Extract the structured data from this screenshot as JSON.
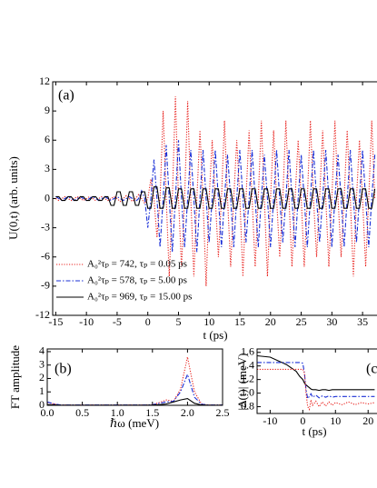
{
  "chart_data": [
    {
      "type": "line",
      "panel_label": "(a)",
      "xlabel": "t (ps)",
      "ylabel": "U(0,t) (arb. units)",
      "xlim": [
        -15.5,
        37.5
      ],
      "ylim": [
        -12,
        12
      ],
      "xticks": [
        -15,
        -10,
        -5,
        0,
        5,
        10,
        15,
        20,
        25,
        30,
        35
      ],
      "yticks": [
        -12,
        -9,
        -6,
        -3,
        0,
        3,
        6,
        9,
        12
      ],
      "legend": "lower left",
      "x": [
        -15,
        -14.5,
        -14,
        -13.5,
        -13,
        -12.5,
        -12,
        -11.5,
        -11,
        -10.5,
        -10,
        -9.5,
        -9,
        -8.5,
        -8,
        -7.5,
        -7,
        -6.5,
        -6,
        -5.5,
        -5,
        -4.5,
        -4,
        -3.5,
        -3,
        -2.5,
        -2,
        -1.5,
        -1,
        -0.5,
        0,
        0.5,
        1,
        1.5,
        2,
        2.5,
        3,
        3.5,
        4,
        4.5,
        5,
        5.5,
        6,
        6.5,
        7,
        7.5,
        8,
        8.5,
        9,
        9.5,
        10,
        10.5,
        11,
        11.5,
        12,
        12.5,
        13,
        13.5,
        14,
        14.5,
        15,
        15.5,
        16,
        16.5,
        17,
        17.5,
        18,
        18.5,
        19,
        19.5,
        20,
        20.5,
        21,
        21.5,
        22,
        22.5,
        23,
        23.5,
        24,
        24.5,
        25,
        25.5,
        26,
        26.5,
        27,
        27.5,
        28,
        28.5,
        29,
        29.5,
        30,
        30.5,
        31,
        31.5,
        32,
        32.5,
        33,
        33.5,
        34,
        34.5,
        35,
        35.5,
        36,
        36.5,
        37
      ],
      "series": [
        {
          "name": "A₀²τₚ = 742, τₚ =  0.05 ps",
          "color": "#e8201c",
          "linestyle": "dotted",
          "values": [
            0,
            -0.2,
            0,
            0.2,
            0,
            -0.2,
            0,
            0.2,
            0,
            -0.2,
            0,
            0.2,
            0,
            -0.2,
            0,
            0.2,
            0,
            -0.2,
            0,
            0.2,
            0,
            -0.3,
            0,
            0.3,
            0,
            -0.3,
            0,
            0.4,
            0,
            -0.5,
            0,
            2,
            0,
            -4,
            0,
            9,
            0,
            -8,
            0,
            10.5,
            0,
            -7,
            0,
            10,
            0,
            -8,
            0,
            7,
            0,
            -9,
            0,
            6,
            0,
            -6,
            0,
            8,
            0,
            -7,
            0,
            6,
            0,
            -8,
            0,
            7,
            0,
            -7,
            0,
            8,
            0,
            -8,
            0,
            7,
            0,
            -6,
            0,
            8,
            0,
            -7,
            0,
            6,
            0,
            -7,
            0,
            8,
            0,
            -6,
            0,
            7,
            0,
            -7,
            0,
            8,
            0,
            -6,
            0,
            7,
            0,
            -8,
            0,
            6,
            0,
            -7,
            0,
            8,
            0
          ]
        },
        {
          "name": "A₀²τₚ = 578, τₚ =  5.00 ps",
          "color": "#1a2fd6",
          "linestyle": "dashdot",
          "values": [
            0.2,
            0,
            -0.2,
            0,
            0.2,
            0,
            -0.2,
            0,
            0.2,
            0,
            -0.2,
            0,
            0.2,
            0,
            -0.2,
            0,
            0.2,
            0,
            -0.2,
            0,
            0.2,
            0,
            -0.2,
            0,
            0.2,
            0,
            -0.3,
            0,
            0.8,
            0,
            -3,
            0,
            4,
            0,
            -5,
            0,
            5.5,
            0,
            -5.5,
            0,
            6,
            0,
            -5,
            0,
            5,
            0,
            -5.5,
            0,
            5,
            0,
            -4.5,
            0,
            5,
            0,
            -5,
            0,
            4.5,
            0,
            -5,
            0,
            5,
            0,
            -4.5,
            0,
            5,
            0,
            -5,
            0,
            4.5,
            0,
            -5,
            0,
            5,
            0,
            -4.5,
            0,
            5,
            0,
            -5,
            0,
            4.5,
            0,
            -5,
            0,
            5,
            0,
            -4.5,
            0,
            5,
            0,
            -5,
            0,
            4.5,
            0,
            -5,
            0,
            5,
            0,
            -4.5,
            0,
            5,
            0,
            -5,
            0,
            4.5
          ]
        },
        {
          "name": "A₀²τₚ = 969, τₚ = 15.00 ps",
          "color": "#000000",
          "linestyle": "solid",
          "values": [
            0.2,
            0.2,
            -0.2,
            -0.2,
            0.2,
            0.2,
            -0.2,
            -0.2,
            0.2,
            0.2,
            -0.2,
            -0.2,
            0.2,
            0.2,
            -0.2,
            -0.2,
            0.2,
            0.2,
            -0.7,
            -0.7,
            0.7,
            0.7,
            -0.7,
            -0.7,
            0.7,
            0.7,
            -0.7,
            -0.7,
            0.7,
            0.7,
            -1,
            -1,
            1.2,
            1.2,
            -1,
            -1,
            1.1,
            1.1,
            -1,
            -1,
            1,
            1,
            -1,
            -1,
            1,
            1,
            -1,
            -1,
            1,
            1,
            -1,
            -1,
            1,
            1,
            -1,
            -1,
            1,
            1,
            -1,
            -1,
            1,
            1,
            -1,
            -1,
            1,
            1,
            -1,
            -1,
            1,
            1,
            -1,
            -1,
            1,
            1,
            -1,
            -1,
            1,
            1,
            -1,
            -1,
            1,
            1,
            -1,
            -1,
            1,
            1,
            -1,
            -1,
            1,
            1,
            -1,
            -1,
            1,
            1,
            -1,
            -1,
            1,
            1,
            -1,
            -1,
            1,
            1,
            -1,
            -1,
            1
          ]
        }
      ]
    },
    {
      "type": "line",
      "panel_label": "(b)",
      "xlabel": "ℏω (meV)",
      "ylabel": "FT amplitude",
      "xlim": [
        0,
        2.5
      ],
      "ylim": [
        0,
        4.2
      ],
      "xticks": [
        {
          "value": 0,
          "label": "0.0"
        },
        0.5,
        {
          "value": 1,
          "label": "1.0"
        },
        1.5,
        {
          "value": 2,
          "label": "2.0"
        },
        2.5
      ],
      "yticks": [
        0,
        1,
        2,
        3,
        4
      ],
      "x": [
        0,
        0.1,
        0.2,
        0.3,
        0.4,
        0.5,
        0.6,
        0.7,
        0.8,
        0.9,
        1,
        1.1,
        1.2,
        1.3,
        1.4,
        1.5,
        1.6,
        1.7,
        1.8,
        1.9,
        2,
        2.1,
        2.2,
        2.3,
        2.4,
        2.5
      ],
      "series": [
        {
          "color": "#e8201c",
          "linestyle": "dotted",
          "values": [
            0.2,
            0.1,
            0.02,
            0.02,
            0.02,
            0.02,
            0.02,
            0.02,
            0.02,
            0.02,
            0.02,
            0.02,
            0.02,
            0.02,
            0.02,
            0.05,
            0.2,
            0.4,
            0.3,
            1.2,
            3.6,
            1,
            0.1,
            0.02,
            0.02,
            0.02
          ]
        },
        {
          "color": "#1a2fd6",
          "linestyle": "dashdot",
          "values": [
            0.25,
            0.1,
            0.02,
            0.02,
            0.02,
            0.02,
            0.02,
            0.02,
            0.02,
            0.02,
            0.02,
            0.02,
            0.02,
            0.02,
            0.02,
            0.04,
            0.15,
            0.25,
            0.3,
            1,
            2.3,
            0.6,
            0.08,
            0.02,
            0.02,
            0.02
          ]
        },
        {
          "color": "#000000",
          "linestyle": "solid",
          "values": [
            0.05,
            0.03,
            0.01,
            0.01,
            0.01,
            0.01,
            0.01,
            0.01,
            0.01,
            0.01,
            0.01,
            0.01,
            0.01,
            0.01,
            0.01,
            0.02,
            0.05,
            0.1,
            0.25,
            0.4,
            0.5,
            0.15,
            0.03,
            0.01,
            0.01,
            0.01
          ]
        }
      ]
    },
    {
      "type": "line",
      "panel_label": "(c)",
      "xlabel": "t (ps)",
      "ylabel": "|Δ(t)| (meV)",
      "xlim": [
        -14,
        23
      ],
      "ylim": [
        0.7,
        1.65
      ],
      "xticks": [
        -10,
        0,
        10,
        20
      ],
      "yticks": [
        0.8,
        {
          "value": 1,
          "label": "1.0"
        },
        1.2,
        1.4,
        1.6
      ],
      "x": [
        -14,
        -10,
        -5,
        -2,
        -1,
        0,
        0.5,
        1,
        1.5,
        2,
        2.5,
        3,
        4,
        5,
        6,
        7,
        8,
        9,
        10,
        12,
        14,
        16,
        18,
        20,
        22
      ],
      "series": [
        {
          "color": "#000000",
          "linestyle": "solid",
          "values": [
            1.55,
            1.53,
            1.42,
            1.32,
            1.25,
            1.2,
            1.15,
            1.12,
            1.1,
            1.08,
            1.06,
            1.05,
            1.05,
            1.04,
            1.05,
            1.05,
            1.04,
            1.05,
            1.05,
            1.05,
            1.05,
            1.05,
            1.05,
            1.05,
            1.05
          ]
        },
        {
          "color": "#1a2fd6",
          "linestyle": "dashdot",
          "values": [
            1.45,
            1.45,
            1.45,
            1.45,
            1.45,
            1.44,
            1.3,
            1.05,
            0.92,
            0.95,
            0.99,
            0.94,
            0.97,
            0.93,
            0.96,
            0.94,
            0.96,
            0.94,
            0.95,
            0.95,
            0.95,
            0.95,
            0.95,
            0.95,
            0.95
          ]
        },
        {
          "color": "#e8201c",
          "linestyle": "dotted",
          "values": [
            1.35,
            1.35,
            1.35,
            1.35,
            1.35,
            1.35,
            1.3,
            1,
            0.8,
            0.76,
            0.9,
            0.82,
            0.88,
            0.8,
            0.87,
            0.81,
            0.87,
            0.82,
            0.86,
            0.83,
            0.87,
            0.83,
            0.86,
            0.84,
            0.86
          ]
        }
      ]
    }
  ]
}
